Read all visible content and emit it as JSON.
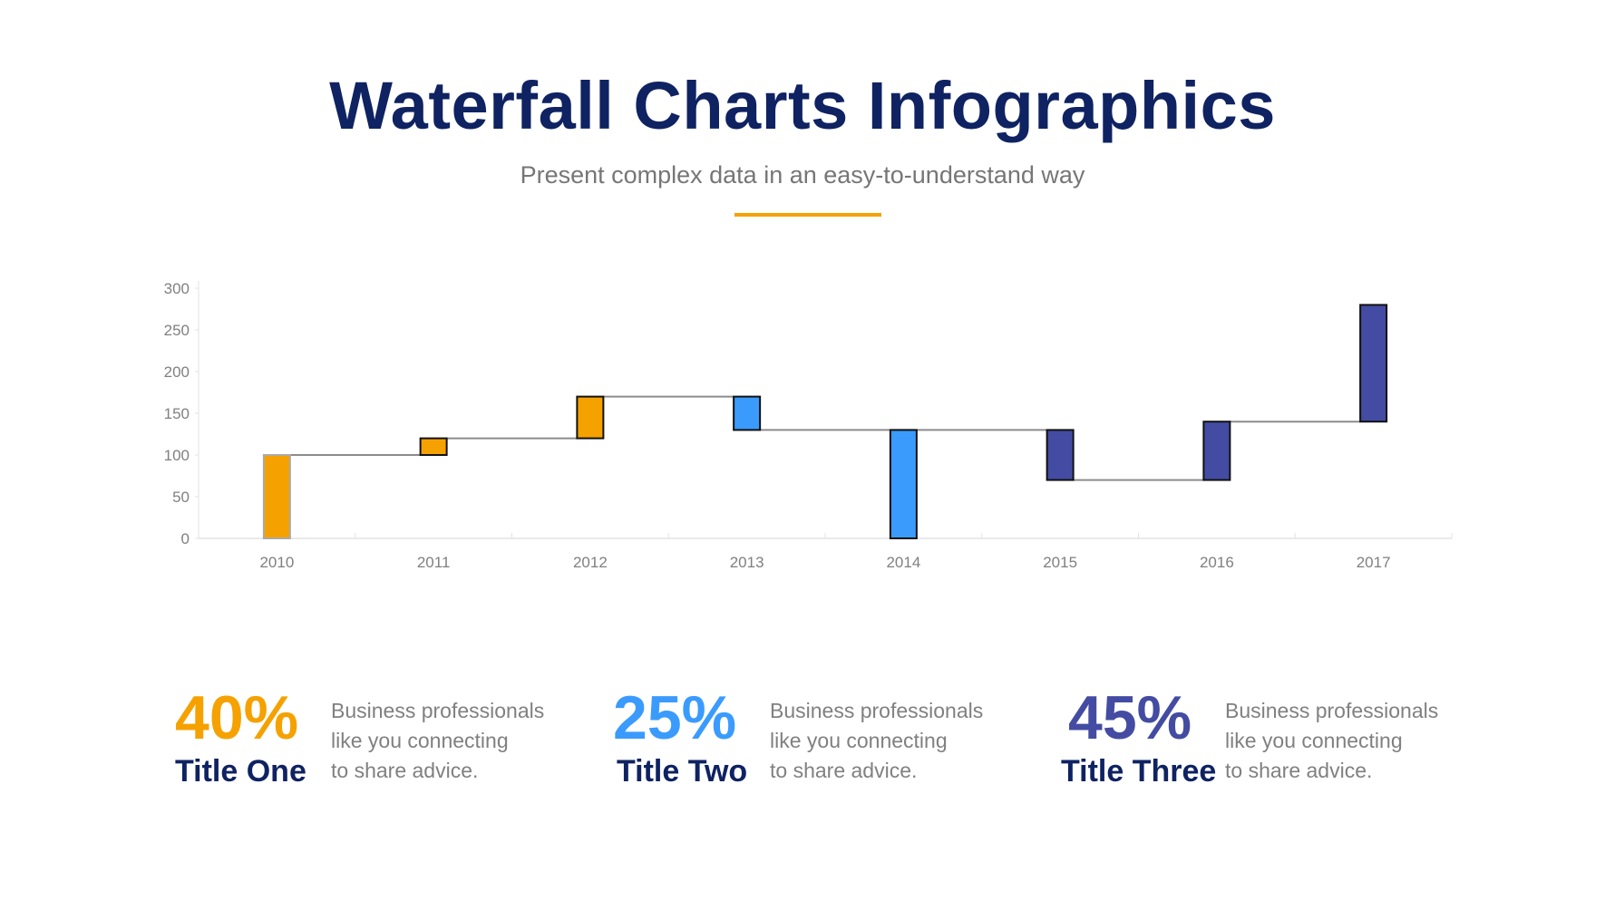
{
  "header": {
    "title": "Waterfall Charts Infographics",
    "subtitle": "Present complex data in an easy-to-understand way"
  },
  "colors": {
    "navy": "#0f2262",
    "orange": "#f5a100",
    "blue": "#3a9bfd",
    "indigo": "#434ca2",
    "connector": "#8c8c8c"
  },
  "chart_data": {
    "type": "bar",
    "subtype": "waterfall",
    "categories": [
      "2010",
      "2011",
      "2012",
      "2013",
      "2014",
      "2015",
      "2016",
      "2017"
    ],
    "bars": [
      {
        "start": 0,
        "end": 100,
        "color": "#f5a100"
      },
      {
        "start": 100,
        "end": 120,
        "color": "#f5a100"
      },
      {
        "start": 120,
        "end": 170,
        "color": "#f5a100"
      },
      {
        "start": 170,
        "end": 130,
        "color": "#3a9bfd"
      },
      {
        "start": 130,
        "end": 0,
        "color": "#3a9bfd"
      },
      {
        "start": 130,
        "end": 70,
        "color": "#434ca2"
      },
      {
        "start": 70,
        "end": 140,
        "color": "#434ca2"
      },
      {
        "start": 140,
        "end": 280,
        "color": "#434ca2"
      }
    ],
    "yticks": [
      "0",
      "50",
      "100",
      "150",
      "200",
      "250",
      "300"
    ],
    "ylim": [
      0,
      300
    ],
    "grid": false,
    "connectors": [
      [
        100,
        "2010",
        "2011"
      ],
      [
        120,
        "2011",
        "2012"
      ],
      [
        170,
        "2012",
        "2013"
      ],
      [
        130,
        "2013",
        "2015"
      ],
      [
        70,
        "2015",
        "2016"
      ],
      [
        140,
        "2016",
        "2017"
      ]
    ]
  },
  "stats": [
    {
      "value": "40%",
      "title": "Title One",
      "text": [
        "Business professionals",
        "like you connecting",
        "to share advice."
      ],
      "color": "#f5a100"
    },
    {
      "value": "25%",
      "title": "Title Two",
      "text": [
        "Business professionals",
        "like you connecting",
        "to share advice."
      ],
      "color": "#3a9bfd"
    },
    {
      "value": "45%",
      "title": "Title Three",
      "text": [
        "Business professionals",
        "like you connecting",
        "to share advice."
      ],
      "color": "#434ca2"
    }
  ]
}
